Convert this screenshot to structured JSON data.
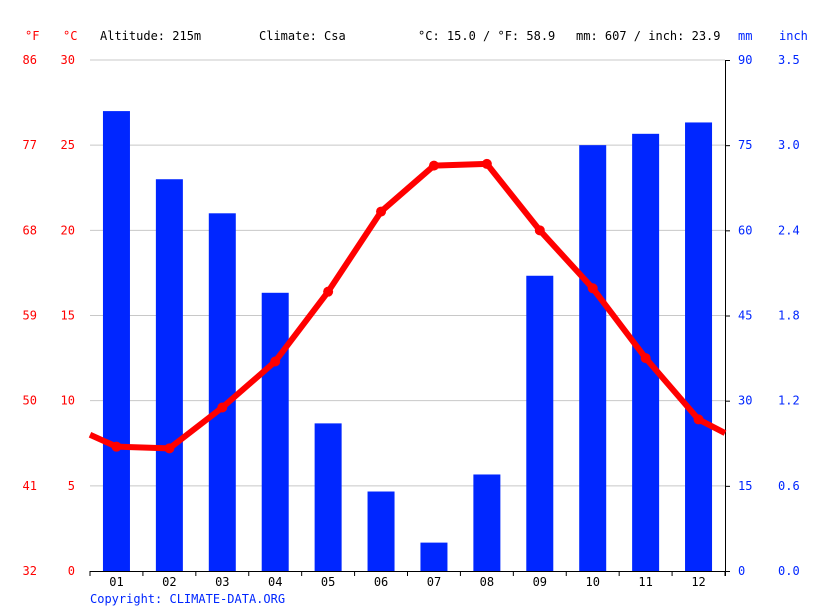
{
  "header": {
    "unit_f": "°F",
    "unit_c": "°C",
    "altitude": "Altitude: 215m",
    "climate": "Climate: Csa",
    "temp_avg": "°C: 15.0 / °F: 58.9",
    "precip_total": "mm: 607 / inch: 23.9",
    "unit_mm": "mm",
    "unit_inch": "inch"
  },
  "axes": {
    "left_f_ticks": [
      "32",
      "41",
      "50",
      "59",
      "68",
      "77",
      "86"
    ],
    "left_c_ticks": [
      "0",
      "5",
      "10",
      "15",
      "20",
      "25",
      "30"
    ],
    "right_mm_ticks": [
      "0",
      "15",
      "30",
      "45",
      "60",
      "75",
      "90"
    ],
    "right_inch_ticks": [
      "0.0",
      "0.6",
      "1.2",
      "1.8",
      "2.4",
      "3.0",
      "3.5"
    ]
  },
  "colors": {
    "temperature": "#ff0000",
    "precipitation": "#0026ff",
    "grid": "#c8c8c8",
    "axis": "#000000"
  },
  "chart_data": {
    "type": "bar",
    "categories": [
      "01",
      "02",
      "03",
      "04",
      "05",
      "06",
      "07",
      "08",
      "09",
      "10",
      "11",
      "12"
    ],
    "temp_ylim": [
      0,
      30
    ],
    "precip_ylim": [
      0,
      90
    ],
    "series": [
      {
        "name": "",
        "unit": "mm",
        "values": [
          81,
          69,
          63,
          49,
          26,
          14,
          5,
          17,
          52,
          75,
          77,
          79
        ]
      },
      {
        "name": "",
        "unit": "°C",
        "values": [
          7.3,
          7.2,
          9.6,
          12.3,
          16.4,
          21.1,
          23.8,
          23.9,
          20.0,
          16.6,
          12.5,
          8.9
        ],
        "edge_values": [
          8.0,
          8.1
        ]
      }
    ],
    "grid": true
  },
  "footer": {
    "copyright": "Copyright: CLIMATE-DATA.ORG"
  }
}
